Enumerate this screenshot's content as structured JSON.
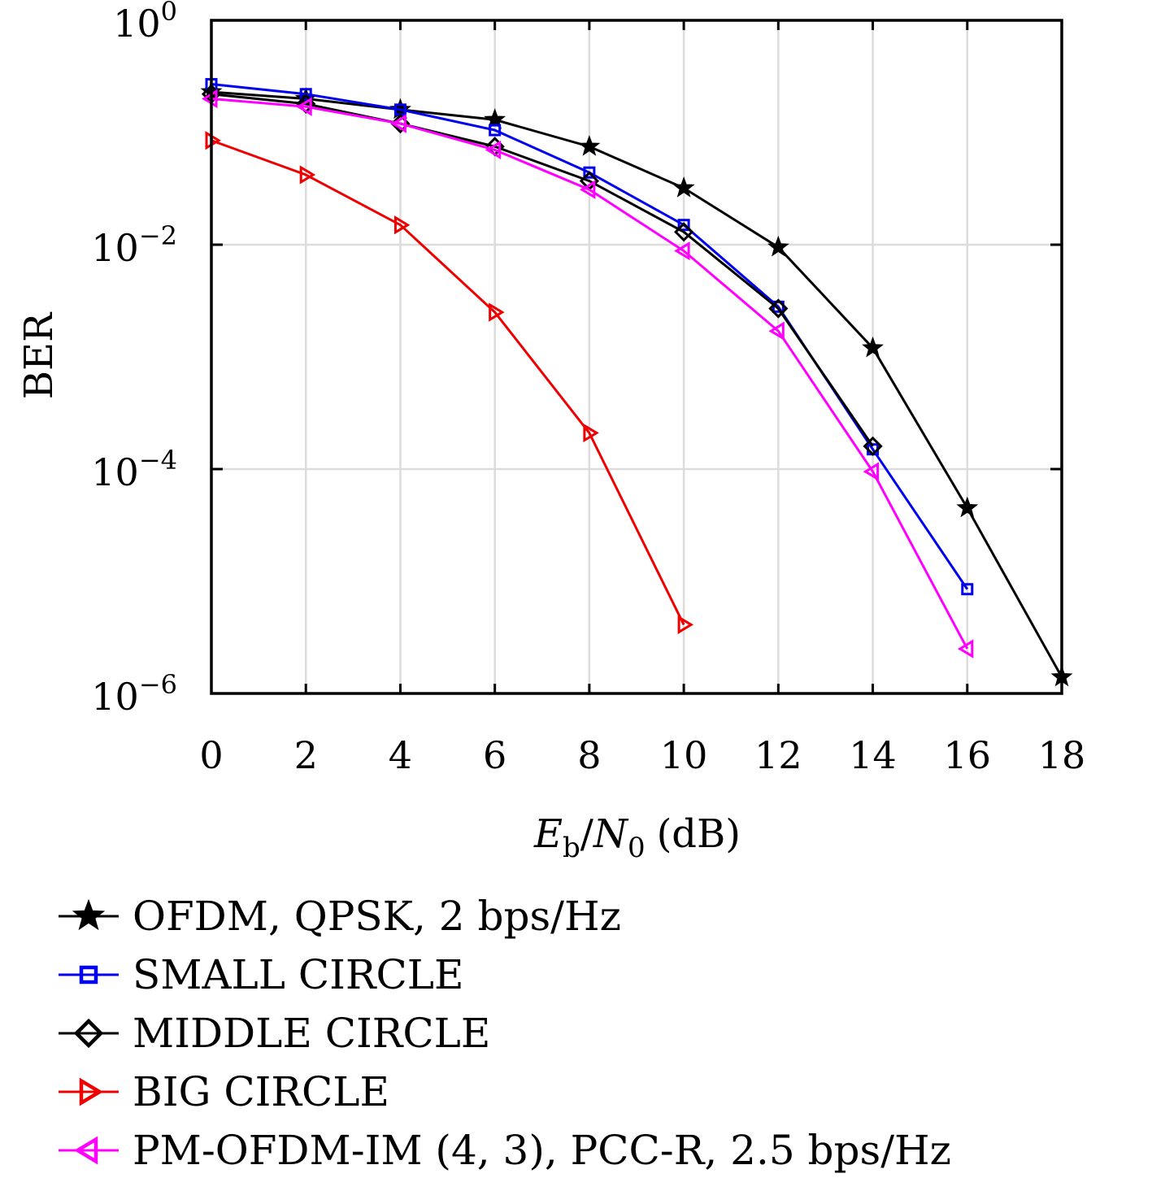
{
  "chart_data": {
    "type": "line",
    "xlabel": "Eb/N0 (dB)",
    "xlabel_parts": {
      "main": "E",
      "sub1": "b",
      "slash": "/",
      "main2": "N",
      "sub2": "0",
      "unit": "(dB)"
    },
    "ylabel": "BER",
    "xlim": [
      0,
      18
    ],
    "ylim": [
      1e-06,
      1
    ],
    "yscale": "log",
    "xticks": [
      0,
      2,
      4,
      6,
      8,
      10,
      12,
      14,
      16,
      18
    ],
    "yticks": [
      {
        "value": 1,
        "base": "10",
        "exp": "0"
      },
      {
        "value": 0.01,
        "base": "10",
        "exp": "−2"
      },
      {
        "value": 0.0001,
        "base": "10",
        "exp": "−4"
      },
      {
        "value": 1e-06,
        "base": "10",
        "exp": "−6"
      }
    ],
    "grid": true,
    "legend_position": "below",
    "series": [
      {
        "name": "OFDM, QPSK, 2 bps/Hz",
        "color": "#000000",
        "marker": "star-icon",
        "x": [
          0,
          2,
          4,
          6,
          8,
          10,
          12,
          14,
          16,
          18
        ],
        "y": [
          0.23,
          0.2,
          0.16,
          0.13,
          0.075,
          0.032,
          0.0095,
          0.0012,
          4.5e-05,
          1.4e-06
        ]
      },
      {
        "name": "SMALL CIRCLE",
        "color": "#0000ee",
        "marker": "square-icon",
        "x": [
          0,
          2,
          4,
          6,
          8,
          10,
          12,
          14,
          16
        ],
        "y": [
          0.27,
          0.22,
          0.16,
          0.105,
          0.044,
          0.015,
          0.0028,
          0.00015,
          8.5e-06
        ]
      },
      {
        "name": "MIDDLE CIRCLE",
        "color": "#000000",
        "marker": "diamond-icon",
        "x": [
          0,
          2,
          4,
          6,
          8,
          10,
          12,
          14
        ],
        "y": [
          0.22,
          0.18,
          0.12,
          0.075,
          0.037,
          0.013,
          0.0027,
          0.00016
        ]
      },
      {
        "name": "BIG CIRCLE",
        "color": "#ee0000",
        "marker": "triangle-right-icon",
        "x": [
          0,
          2,
          4,
          6,
          8,
          10
        ],
        "y": [
          0.085,
          0.042,
          0.015,
          0.0025,
          0.00021,
          4.1e-06
        ]
      },
      {
        "name": "PM-OFDM-IM (4, 3), PCC-R, 2.5 bps/Hz",
        "color": "#ff00ff",
        "marker": "triangle-left-icon",
        "x": [
          0,
          2,
          4,
          6,
          8,
          10,
          12,
          14,
          16
        ],
        "y": [
          0.2,
          0.17,
          0.12,
          0.07,
          0.031,
          0.0088,
          0.0017,
          9.5e-05,
          2.5e-06
        ]
      }
    ]
  }
}
